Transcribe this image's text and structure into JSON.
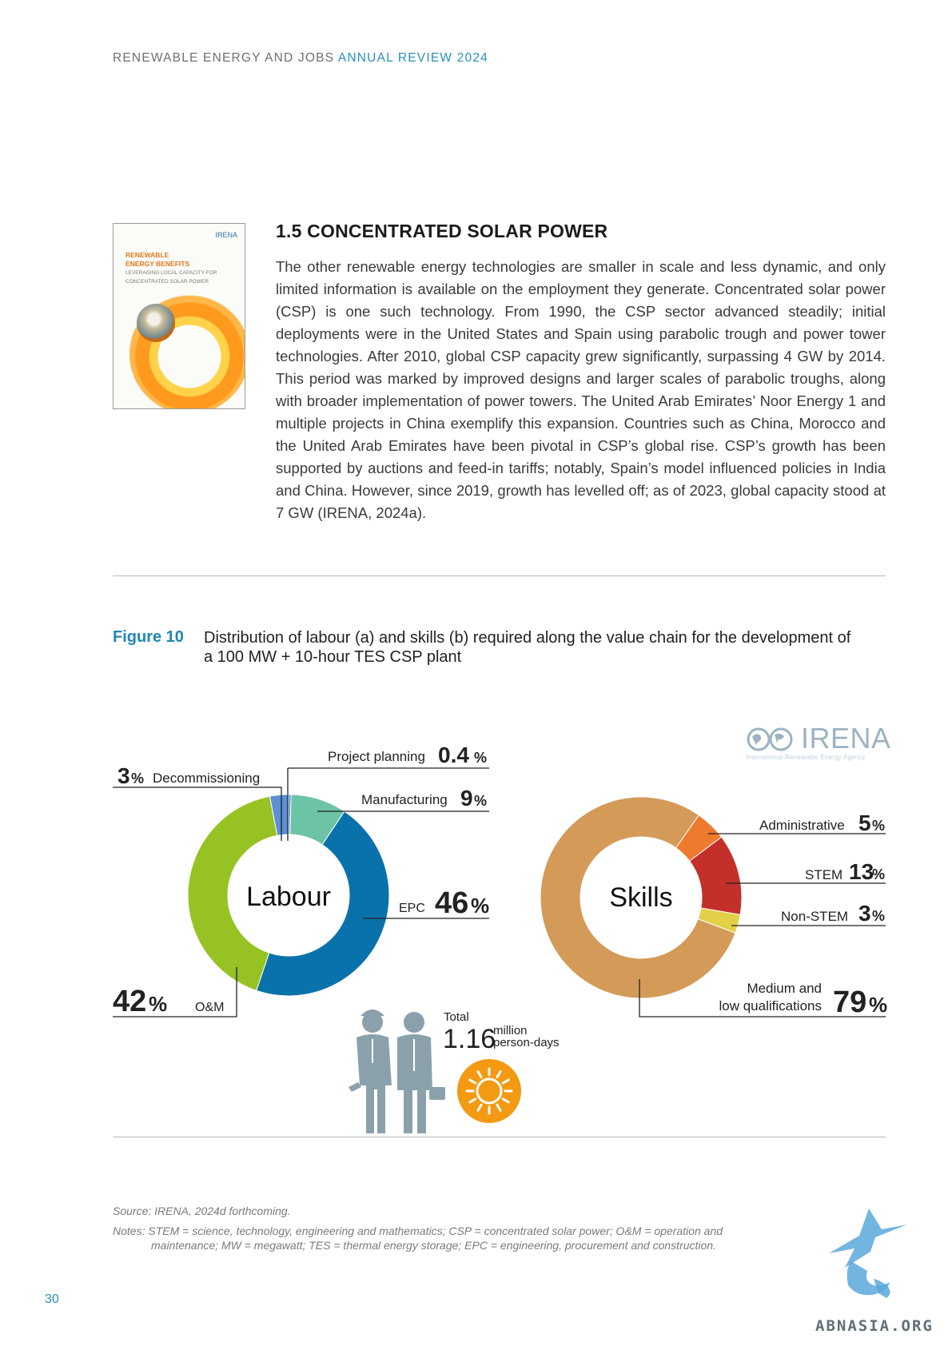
{
  "header": {
    "prefix": "RENEWABLE ENERGY AND JOBS ",
    "highlight": "ANNUAL REVIEW 2024"
  },
  "cover": {
    "logo": "IRENA",
    "title_line1": "RENEWABLE",
    "title_line2": "ENERGY BENEFITS",
    "subtitle_line1": "LEVERAGING LOCAL CAPACITY FOR",
    "subtitle_line2": "CONCENTRATED SOLAR POWER"
  },
  "section": {
    "title": "1.5 CONCENTRATED SOLAR POWER",
    "body": "The other renewable energy technologies are smaller in scale and less dynamic, and only limited information is available on the employment they generate. Concentrated solar power (CSP) is one such technology. From 1990, the CSP sector advanced steadily; initial deployments were in the United States and Spain using parabolic trough and power tower technologies. After 2010, global CSP capacity grew significantly, surpassing 4 GW by 2014. This period was marked by improved designs and larger scales of parabolic troughs, along with broader implementation of power towers. The United Arab Emirates’ Noor Energy 1 and multiple projects in China exemplify this expansion. Countries such as China, Morocco and the United Arab Emirates have been pivotal in CSP’s global rise. CSP’s growth has been supported by auctions and feed-in tariffs; notably, Spain’s model influenced policies in India and China. However, since 2019, growth has levelled off; as of 2023, global capacity stood at 7 GW (IRENA, 2024a)."
  },
  "figure": {
    "label": "Figure 10",
    "caption": "Distribution of labour (a) and skills (b) required along the value chain for the development of a 100 MW + 10-hour TES CSP plant"
  },
  "irena_logo": {
    "word": "IRENA",
    "tagline": "International Renewable Energy Agency"
  },
  "total": {
    "label": "Total",
    "value": "1.16",
    "unit_line1": "million",
    "unit_line2": "person-days"
  },
  "colors": {
    "decommissioning": "#5b8fd6",
    "project_planning": "#5b8fd6",
    "manufacturing": "#6cc3a6",
    "epc": "#0a72aa",
    "om": "#97c224",
    "administrative": "#ee7a2e",
    "stem": "#c3302a",
    "non_stem": "#e3d048",
    "medium_low": "#d49a58",
    "sun": "#f39a12",
    "figure_grey": "#8aa1ab"
  },
  "chart_data": [
    {
      "type": "donut",
      "center_label": "Labour",
      "categories": [
        "Project planning",
        "Manufacturing",
        "EPC",
        "O&M",
        "Decommissioning"
      ],
      "values": [
        0.4,
        9,
        46,
        42,
        3
      ],
      "labels": [
        {
          "name": "Project planning",
          "value": "0.4",
          "unit": "%"
        },
        {
          "name": "Manufacturing",
          "value": "9",
          "unit": "%"
        },
        {
          "name": "EPC",
          "value": "46",
          "unit": "%"
        },
        {
          "name": "O&M",
          "value": "42",
          "unit": "%"
        },
        {
          "name": "Decommissioning",
          "value": "3",
          "unit": "%"
        }
      ]
    },
    {
      "type": "donut",
      "center_label": "Skills",
      "categories": [
        "Administrative",
        "STEM",
        "Non-STEM",
        "Medium and low qualifications"
      ],
      "values": [
        5,
        13,
        3,
        79
      ],
      "labels": [
        {
          "name": "Administrative",
          "value": "5",
          "unit": "%"
        },
        {
          "name": "STEM",
          "value": "13",
          "unit": "%"
        },
        {
          "name": "Non-STEM",
          "value": "3",
          "unit": "%"
        },
        {
          "name_line1": "Medium and",
          "name_line2": "low qualifications",
          "value": "79",
          "unit": "%"
        }
      ]
    }
  ],
  "source": "Source: IRENA, 2024d forthcoming.",
  "notes_line1": "Notes: STEM = science, technology, engineering and mathematics; CSP = concentrated solar power; O&M = operation and",
  "notes_line2": "maintenance; MW = megawatt; TES = thermal energy storage; EPC = engineering, procurement and construction.",
  "page_number": "30",
  "watermark": "ABNASIA.ORG"
}
